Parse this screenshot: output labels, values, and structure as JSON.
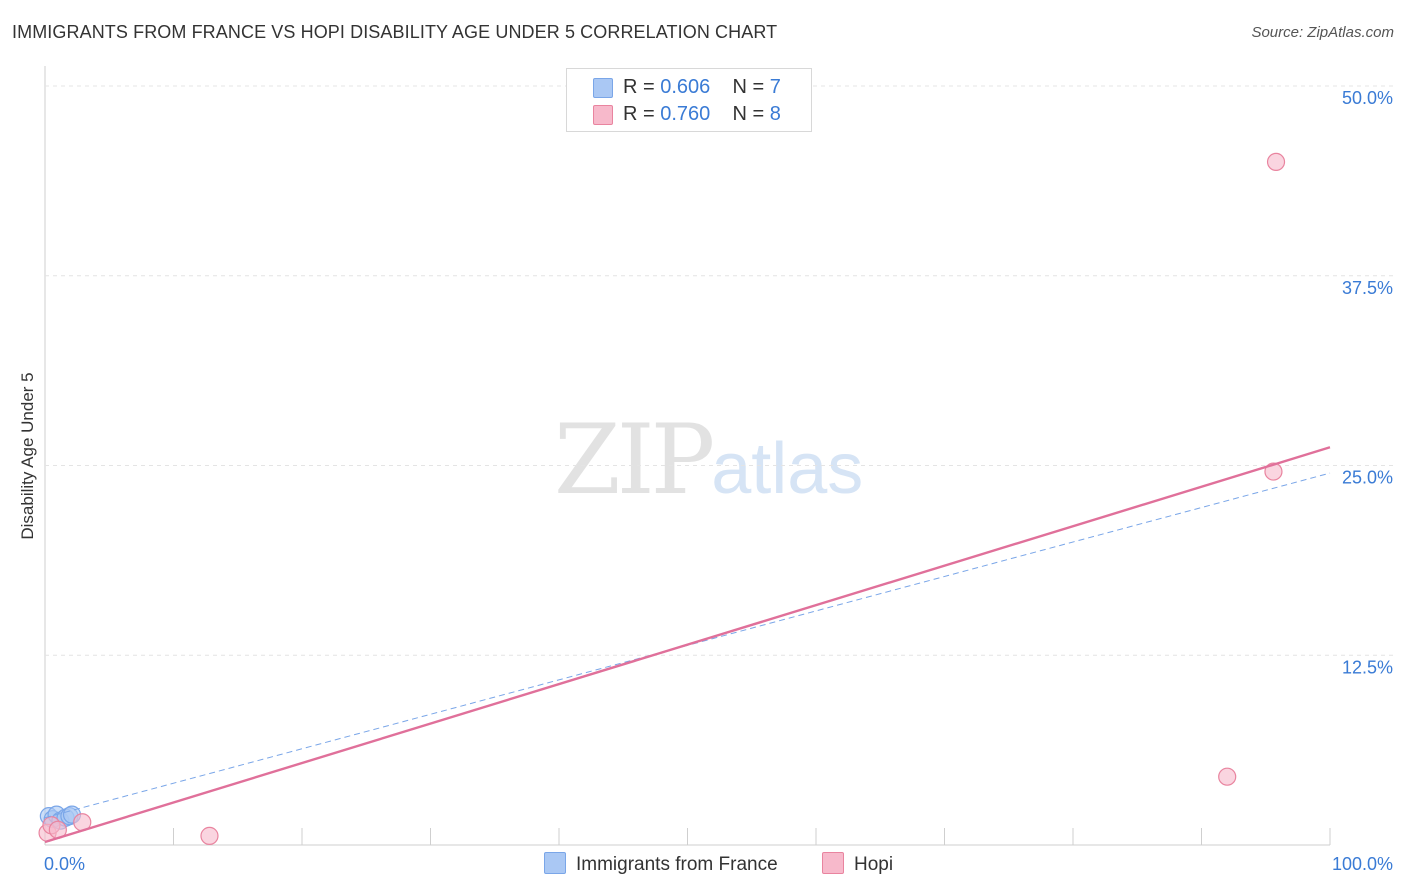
{
  "title": "IMMIGRANTS FROM FRANCE VS HOPI DISABILITY AGE UNDER 5 CORRELATION CHART",
  "source": "Source: ZipAtlas.com",
  "watermark": {
    "zip": "ZIP",
    "atlas": "atlas"
  },
  "legend": {
    "rows": [
      {
        "r_label": "R =",
        "r_value": "0.606",
        "n_label": "N =",
        "n_value": "7",
        "color": "#aac8f4"
      },
      {
        "r_label": "R =",
        "r_value": "0.760",
        "n_label": "N =",
        "n_value": "8",
        "color": "#f7b9cb"
      }
    ]
  },
  "bottom_legend": [
    {
      "label": "Immigrants from France",
      "color": "#aac8f4"
    },
    {
      "label": "Hopi",
      "color": "#f7b9cb"
    }
  ],
  "chart_data": {
    "type": "scatter",
    "title": "IMMIGRANTS FROM FRANCE VS HOPI DISABILITY AGE UNDER 5 CORRELATION CHART",
    "xlabel": "",
    "ylabel": "Disability Age Under 5",
    "xlim": [
      0,
      100
    ],
    "ylim": [
      0,
      50
    ],
    "x_tick_labels": [
      "0.0%",
      "100.0%"
    ],
    "y_ticks": [
      12.5,
      25.0,
      37.5,
      50.0
    ],
    "y_tick_labels": [
      "12.5%",
      "25.0%",
      "37.5%",
      "50.0%"
    ],
    "grid": true,
    "series": [
      {
        "name": "Immigrants from France",
        "color": "#7aa6e8",
        "fill": "#aac8f4",
        "points": [
          [
            0.3,
            1.9
          ],
          [
            0.6,
            1.7
          ],
          [
            0.9,
            2.0
          ],
          [
            1.2,
            1.6
          ],
          [
            1.6,
            1.8
          ],
          [
            1.9,
            1.9
          ],
          [
            2.1,
            2.0
          ]
        ],
        "trend": {
          "x": [
            0,
            100
          ],
          "y": [
            1.8,
            24.5
          ],
          "style": "dashed",
          "color": "#7aa6e8"
        }
      },
      {
        "name": "Hopi",
        "color": "#e9849f",
        "fill": "#f7b9cb",
        "points": [
          [
            0.2,
            0.8
          ],
          [
            0.5,
            1.3
          ],
          [
            1.0,
            1.0
          ],
          [
            2.9,
            1.5
          ],
          [
            12.8,
            0.6
          ],
          [
            92.0,
            4.5
          ],
          [
            95.6,
            24.6
          ],
          [
            95.8,
            45.0
          ]
        ],
        "trend": {
          "x": [
            0,
            100
          ],
          "y": [
            0.2,
            26.2
          ],
          "style": "solid",
          "color": "#e0709a"
        }
      }
    ]
  }
}
